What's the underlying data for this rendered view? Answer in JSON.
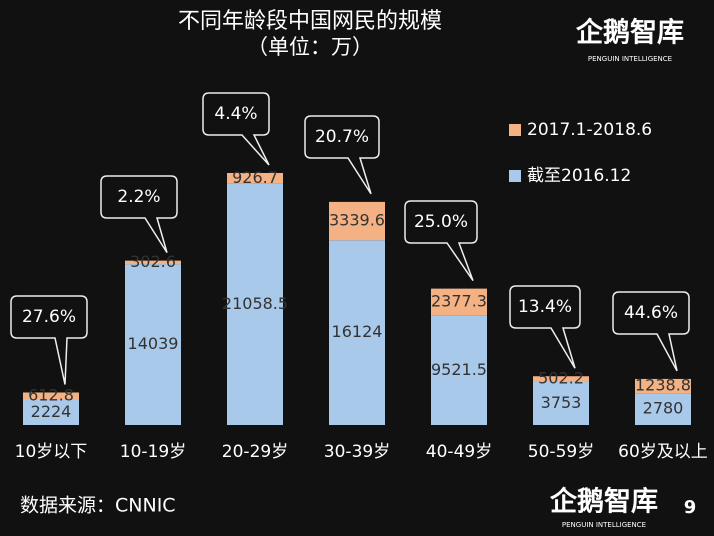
{
  "chart_data": {
    "type": "stacked-bar",
    "title": "不同年龄段中国网民的规模",
    "subtitle": "（单位：万）",
    "categories": [
      "10岁以下",
      "10-19岁",
      "20-29岁",
      "30-39岁",
      "40-49岁",
      "50-59岁",
      "60岁及以上"
    ],
    "series": [
      {
        "name": "截至2016.12",
        "color": "#a9c9ea",
        "values": [
          2224,
          14039,
          21058.5,
          16124,
          9521.5,
          3753,
          2780
        ]
      },
      {
        "name": "2017.1-2018.6",
        "color": "#f4b183",
        "values": [
          612.8,
          302.6,
          926.7,
          3339.6,
          2377.3,
          502.2,
          1238.8
        ]
      }
    ],
    "annotations": [
      "27.6%",
      "2.2%",
      "4.4%",
      "20.7%",
      "25.0%",
      "13.4%",
      "44.6%"
    ],
    "legend": "top-right"
  },
  "source": "数据来源：CNNIC",
  "logo": {
    "name": "企鹅智库",
    "tagline": "PENGUIN INTELLIGENCE"
  },
  "page_number": "9"
}
